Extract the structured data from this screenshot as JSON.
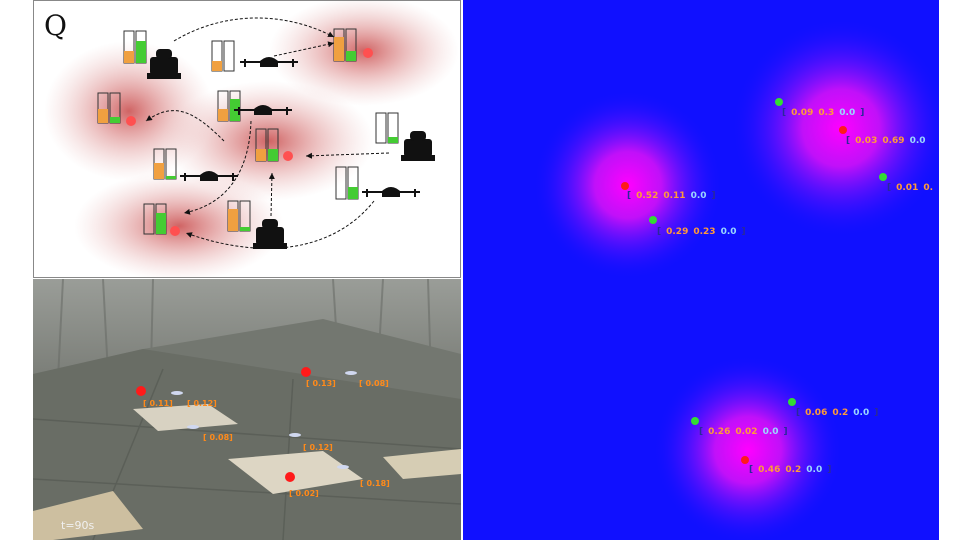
{
  "diagram": {
    "label": "Q"
  },
  "photo": {
    "timestamp": "t=90s",
    "labels": [
      "[ 0.13]",
      "[ 0.08]",
      "[ 0.11]",
      "[ 0.12]",
      "[ 0.08]",
      "[ 0.12]",
      "[ 0.02]",
      "[ 0.18]"
    ]
  },
  "heatmap": {
    "labels": [
      {
        "a": "0.09",
        "b": "0.3",
        "c": "0.0"
      },
      {
        "a": "0.03",
        "b": "0.69",
        "c": "0.0"
      },
      {
        "a": "0.01",
        "b": "0.",
        "c": ""
      },
      {
        "a": "0.52",
        "b": "0.11",
        "c": "0.0"
      },
      {
        "a": "0.29",
        "b": "0.23",
        "c": "0.0"
      },
      {
        "a": "0.06",
        "b": "0.2",
        "c": "0.0"
      },
      {
        "a": "0.26",
        "b": "0.02",
        "c": "0.0"
      },
      {
        "a": "0.46",
        "b": "0.2",
        "c": "0.0"
      }
    ]
  },
  "colors": {
    "heat_bg": "#1010ff",
    "heat_peak": "#ff00ff",
    "goal_red": "#ff1a1a",
    "agent_green": "#33dd33",
    "bar_orange": "#f0a040",
    "bar_green": "#44cc33"
  }
}
